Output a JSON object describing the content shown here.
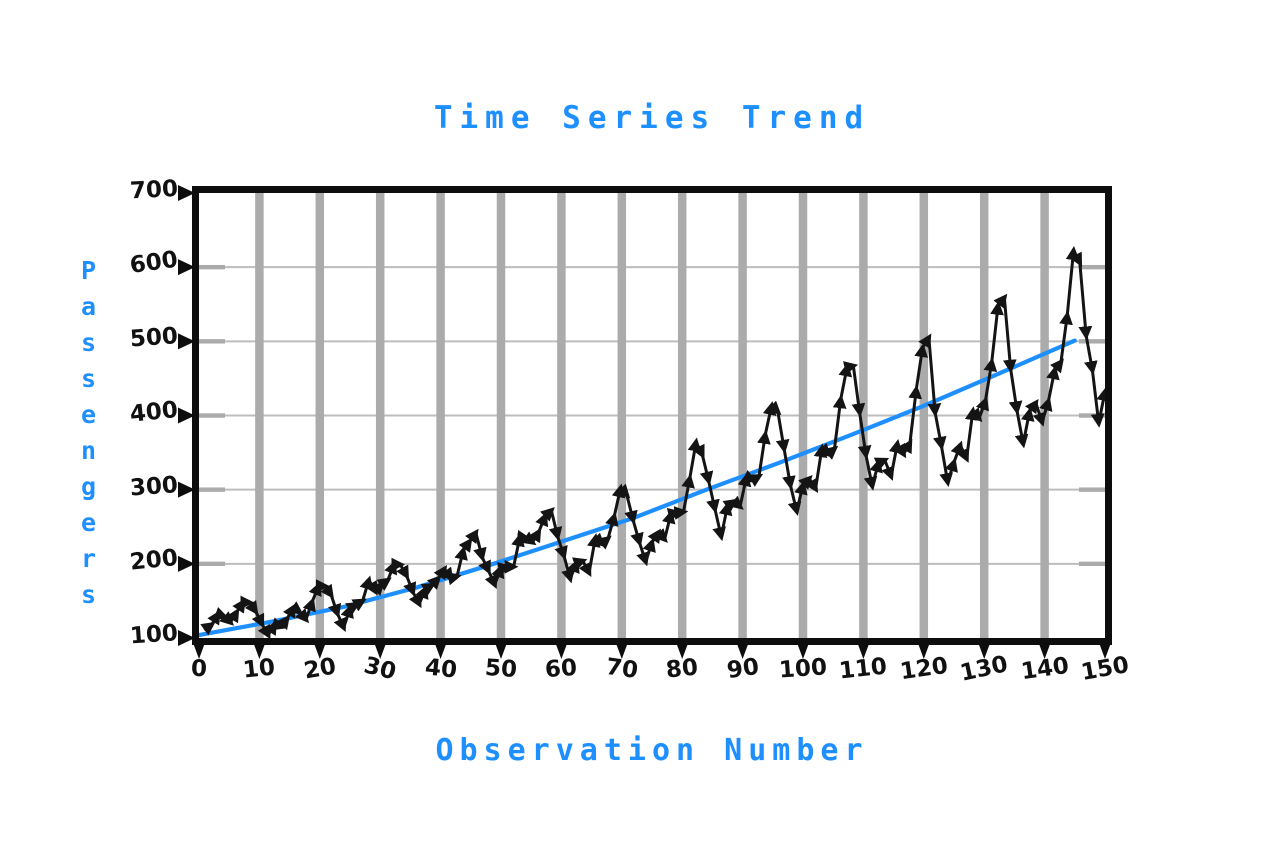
{
  "chart": {
    "title": "Time Series Trend",
    "x_axis_label": "Observation Number",
    "y_axis_label": "Passengers",
    "accent_color": "#1E8FFF",
    "data_line_color": "#141414",
    "trend_line_color": "#1E8FFF",
    "vertical_grid_color": "#ABABAB",
    "horizontal_grid_color": "#BDBDBD",
    "frame_color": "#0d0d0d",
    "background_color": "#ffffff"
  },
  "chart_data": {
    "type": "line",
    "title": "Time Series Trend",
    "xlabel": "Observation Number",
    "ylabel": "Passengers",
    "xlim": [
      0,
      150
    ],
    "ylim": [
      100,
      700
    ],
    "x_ticks": [
      0,
      10,
      20,
      30,
      40,
      50,
      60,
      70,
      80,
      90,
      100,
      110,
      120,
      130,
      140,
      150
    ],
    "y_ticks": [
      100,
      200,
      300,
      400,
      500,
      600,
      700
    ],
    "grid": "on",
    "legend": "none",
    "series": [
      {
        "name": "passengers",
        "style": "zigzag line with arrowhead segment markers",
        "color": "#141414",
        "x_description": "observation number 1..144 spread across 0-150 axis",
        "values": [
          112,
          118,
          132,
          129,
          121,
          135,
          148,
          148,
          136,
          119,
          104,
          118,
          115,
          126,
          141,
          135,
          125,
          149,
          170,
          170,
          158,
          133,
          114,
          140,
          145,
          150,
          178,
          163,
          172,
          178,
          199,
          199,
          184,
          162,
          146,
          166,
          171,
          180,
          193,
          181,
          183,
          218,
          230,
          242,
          209,
          191,
          172,
          194,
          196,
          196,
          236,
          235,
          229,
          243,
          264,
          272,
          237,
          211,
          180,
          201,
          204,
          188,
          235,
          227,
          234,
          264,
          302,
          293,
          259,
          229,
          203,
          229,
          242,
          233,
          267,
          269,
          270,
          315,
          364,
          347,
          312,
          274,
          237,
          278,
          284,
          277,
          317,
          313,
          318,
          374,
          413,
          405,
          355,
          306,
          271,
          306,
          315,
          301,
          356,
          348,
          355,
          422,
          465,
          467,
          404,
          347,
          305,
          336,
          340,
          318,
          362,
          348,
          363,
          435,
          491,
          505,
          404,
          359,
          310,
          337,
          360,
          342,
          406,
          396,
          420,
          472,
          548,
          559,
          463,
          407,
          362,
          405,
          417,
          391,
          419,
          461,
          472,
          535,
          622,
          606,
          508,
          461,
          390,
          432
        ]
      },
      {
        "name": "trend",
        "style": "smooth rising line",
        "color": "#1E8FFF",
        "points": [
          [
            0,
            104
          ],
          [
            12,
            122
          ],
          [
            24,
            142
          ],
          [
            36,
            168
          ],
          [
            48,
            198
          ],
          [
            60,
            230
          ],
          [
            72,
            262
          ],
          [
            84,
            300
          ],
          [
            96,
            336
          ],
          [
            108,
            374
          ],
          [
            120,
            413
          ],
          [
            132,
            455
          ],
          [
            145,
            501
          ]
        ]
      }
    ]
  }
}
